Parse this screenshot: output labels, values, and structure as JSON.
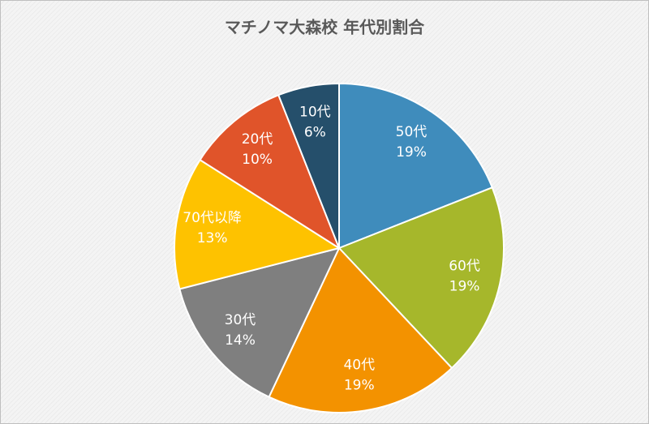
{
  "chart_data": {
    "type": "pie",
    "title": "マチノマ大森校 年代別割合",
    "categories": [
      "50代",
      "60代",
      "40代",
      "30代",
      "70代以降",
      "20代",
      "10代"
    ],
    "values": [
      19,
      19,
      19,
      14,
      13,
      10,
      6
    ],
    "value_labels": [
      "19%",
      "19%",
      "19%",
      "14%",
      "13%",
      "10%",
      "6%"
    ],
    "colors": [
      "#3f8cbc",
      "#a6b72b",
      "#f39200",
      "#7f7f7f",
      "#fec200",
      "#e0542a",
      "#254f6b"
    ]
  }
}
